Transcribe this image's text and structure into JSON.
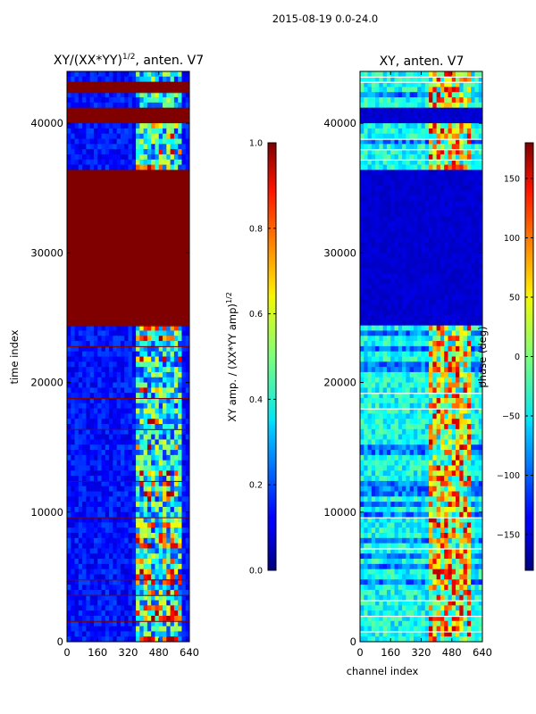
{
  "suptitle": "2015-08-19 0.0-24.0",
  "chart_data": [
    {
      "type": "heatmap",
      "title": "XY/(XX*YY)",
      "title_superscript": "1/2",
      "title_suffix": ", anten. V7",
      "xlabel": "",
      "ylabel": "time index",
      "xlim": [
        0,
        640
      ],
      "ylim": [
        0,
        44000
      ],
      "xticks": [
        "0",
        "160",
        "320",
        "480",
        "640"
      ],
      "yticks": [
        "0",
        "10000",
        "20000",
        "30000",
        "40000"
      ],
      "colorbar": {
        "label": "XY amp. / (XX*YY amp)",
        "label_superscript": "1/2",
        "range": [
          0.0,
          1.0
        ],
        "ticks": [
          "0.0",
          "0.2",
          "0.4",
          "0.6",
          "0.8",
          "1.0"
        ],
        "colormap": "jet"
      },
      "saturated_bands": [
        [
          24500,
          36300
        ],
        [
          40000,
          41000
        ],
        [
          42500,
          43000
        ]
      ]
    },
    {
      "type": "heatmap",
      "title": "XY, anten. V7",
      "xlabel": "channel index",
      "ylabel": "",
      "xlim": [
        0,
        640
      ],
      "ylim": [
        0,
        44000
      ],
      "xticks": [
        "0",
        "160",
        "320",
        "480",
        "640"
      ],
      "yticks": [
        "0",
        "10000",
        "20000",
        "30000",
        "40000"
      ],
      "colorbar": {
        "label": "phase (deg)",
        "range": [
          -180,
          180
        ],
        "ticks": [
          "−150",
          "−100",
          "−50",
          "0",
          "50",
          "100",
          "150"
        ],
        "colormap": "jet"
      },
      "low_bands": [
        [
          24500,
          36300
        ],
        [
          40000,
          41000
        ]
      ]
    }
  ]
}
